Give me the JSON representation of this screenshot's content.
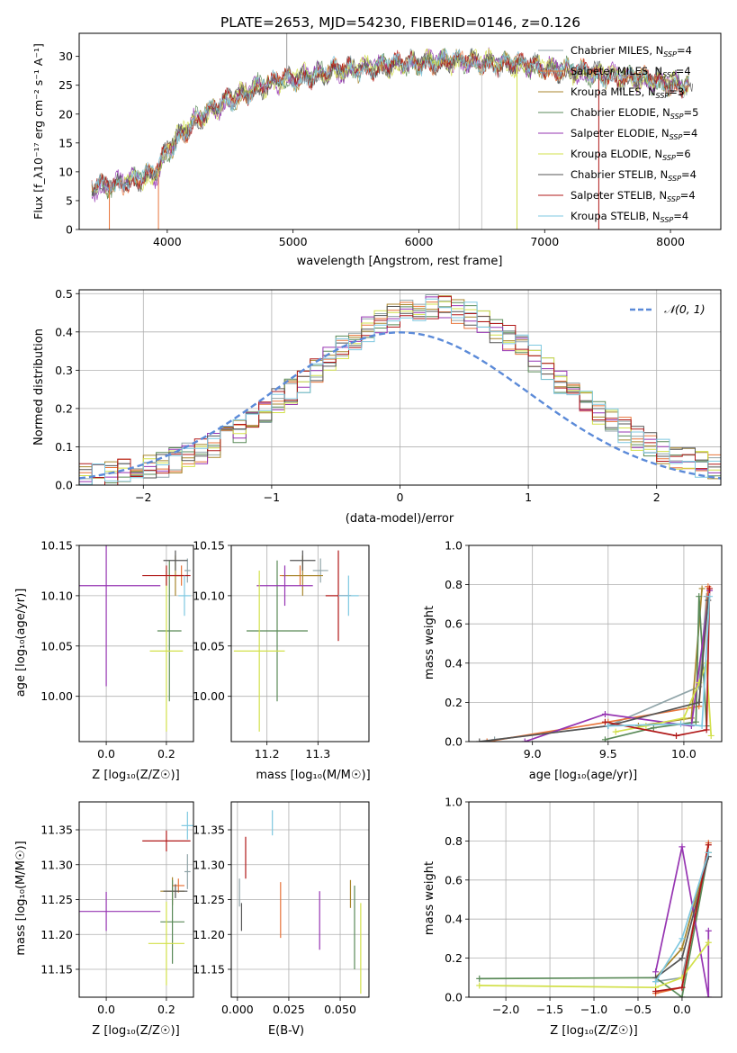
{
  "figure": {
    "title": "PLATE=2653, MJD=54230, FIBERID=0146, z=0.126"
  },
  "colors": {
    "series": [
      "#90a4a8",
      "#e8743a",
      "#a8862c",
      "#5a8a58",
      "#9634b2",
      "#d2e04a",
      "#555555",
      "#b01818",
      "#7ec8e0"
    ],
    "normal_curve": "#5b8ad8",
    "grid": "#b0b0b0"
  },
  "chart_data": [
    {
      "id": "spectrum",
      "type": "line",
      "xlabel": "wavelength [Angstrom, rest frame]",
      "ylabel": "Flux [f_λ10⁻¹⁷ erg cm⁻² s⁻¹ A⁻¹]",
      "xlim": [
        3300,
        8400
      ],
      "ylim": [
        0,
        34
      ],
      "xticks": [
        4000,
        5000,
        6000,
        7000,
        8000
      ],
      "yticks": [
        0,
        5,
        10,
        15,
        20,
        25,
        30
      ],
      "grid": false,
      "legend_position": "top-right",
      "continuum_x": [
        3400,
        3550,
        3700,
        3800,
        3900,
        4000,
        4100,
        4200,
        4300,
        4500,
        4700,
        4900,
        5100,
        5300,
        5500,
        5700,
        5900,
        6100,
        6300,
        6500,
        6700,
        6900,
        7100,
        7300,
        7500,
        7700,
        7900,
        8150
      ],
      "continuum_y": [
        7.2,
        7.8,
        8.5,
        9.0,
        9.5,
        13.5,
        16.5,
        18.5,
        20.0,
        22.5,
        24.5,
        25.8,
        26.6,
        27.3,
        27.9,
        28.3,
        28.7,
        29.1,
        29.2,
        29.0,
        28.7,
        28.3,
        27.8,
        27.2,
        26.8,
        26.2,
        25.6,
        25.0
      ],
      "series": [
        {
          "name": "Chabrier MILES, N_SSP=4",
          "label_main": "Chabrier MILES, N",
          "label_sub": "SSP",
          "label_tail": "=4"
        },
        {
          "name": "Salpeter MILES, N_SSP=4",
          "label_main": "Salpeter MILES, N",
          "label_sub": "SSP",
          "label_tail": "=4"
        },
        {
          "name": "Kroupa MILES, N_SSP=3",
          "label_main": "Kroupa MILES, N",
          "label_sub": "SSP",
          "label_tail": "=3"
        },
        {
          "name": "Chabrier ELODIE, N_SSP=5",
          "label_main": "Chabrier ELODIE, N",
          "label_sub": "SSP",
          "label_tail": "=5"
        },
        {
          "name": "Salpeter ELODIE, N_SSP=4",
          "label_main": "Salpeter ELODIE, N",
          "label_sub": "SSP",
          "label_tail": "=4"
        },
        {
          "name": "Kroupa ELODIE, N_SSP=6",
          "label_main": "Kroupa ELODIE, N",
          "label_sub": "SSP",
          "label_tail": "=6"
        },
        {
          "name": "Chabrier STELIB, N_SSP=4",
          "label_main": "Chabrier STELIB, N",
          "label_sub": "SSP",
          "label_tail": "=4"
        },
        {
          "name": "Salpeter STELIB, N_SSP=4",
          "label_main": "Salpeter STELIB, N",
          "label_sub": "SSP",
          "label_tail": "=4"
        },
        {
          "name": "Kroupa STELIB, N_SSP=4",
          "label_main": "Kroupa STELIB, N",
          "label_sub": "SSP",
          "label_tail": "=4"
        }
      ],
      "drop_lines_x": [
        3540,
        3930,
        6320,
        6500,
        6780,
        7430
      ],
      "spike_x": [
        4950
      ]
    },
    {
      "id": "residuals",
      "type": "bar",
      "xlabel": "(data-model)/error",
      "ylabel": "Normed distribution",
      "xlim": [
        -2.5,
        2.5
      ],
      "ylim": [
        0,
        0.51
      ],
      "xticks": [
        -2,
        -1,
        0,
        1,
        2
      ],
      "yticks": [
        0.0,
        0.1,
        0.2,
        0.3,
        0.4,
        0.5
      ],
      "grid": true,
      "legend_position": "top-right",
      "legend_label": "𝒩(0, 1)",
      "bin_width": 0.1,
      "base_profile": [
        0.03,
        0.03,
        0.035,
        0.04,
        0.045,
        0.05,
        0.055,
        0.06,
        0.07,
        0.08,
        0.09,
        0.1,
        0.11,
        0.13,
        0.15,
        0.17,
        0.19,
        0.21,
        0.23,
        0.25,
        0.27,
        0.29,
        0.31,
        0.33,
        0.35,
        0.37,
        0.39,
        0.4,
        0.42,
        0.43,
        0.44,
        0.45,
        0.45,
        0.45,
        0.44,
        0.43,
        0.42,
        0.41,
        0.4,
        0.39,
        0.37,
        0.35,
        0.33,
        0.31,
        0.29,
        0.27,
        0.25,
        0.23,
        0.21,
        0.19,
        0.17,
        0.15,
        0.13,
        0.11,
        0.1,
        0.09,
        0.08,
        0.07,
        0.06,
        0.055,
        0.05,
        0.045,
        0.04,
        0.035,
        0.03,
        0.03,
        0.025,
        0.025,
        0.02,
        0.02,
        0.02,
        0.02,
        0.02,
        0.02,
        0.02,
        0.02,
        0.02,
        0.02,
        0.02,
        0.02,
        0.02,
        0.02,
        0.02,
        0.02,
        0.02,
        0.02,
        0.02,
        0.02,
        0.02,
        0.02,
        0.02,
        0.02,
        0.02,
        0.02,
        0.02,
        0.02,
        0.02,
        0.02,
        0.02,
        0.02
      ]
    },
    {
      "id": "age_vs_Z",
      "type": "scatter",
      "xlabel": "Z [log₁₀(Z/Z☉)]",
      "ylabel": "age  [log₁₀(age/yr)]",
      "xlim": [
        -0.09,
        0.29
      ],
      "ylim": [
        9.955,
        10.15
      ],
      "xticks": [
        0.0,
        0.2
      ],
      "yticks": [
        10.0,
        10.05,
        10.1,
        10.15
      ],
      "grid": true,
      "points": [
        {
          "x": 0.27,
          "y": 10.125,
          "xe": 0.01,
          "ye": 0.012
        },
        {
          "x": 0.25,
          "y": 10.12,
          "xe": 0.02,
          "ye": 0.01
        },
        {
          "x": 0.23,
          "y": 10.12,
          "xe": 0.02,
          "ye": 0.02
        },
        {
          "x": 0.21,
          "y": 10.065,
          "xe": 0.04,
          "ye": 0.07
        },
        {
          "x": 0.0,
          "y": 10.11,
          "xe": 0.18,
          "ye": 0.1
        },
        {
          "x": 0.2,
          "y": 10.045,
          "xe": 0.055,
          "ye": 0.08
        },
        {
          "x": 0.23,
          "y": 10.135,
          "xe": 0.04,
          "ye": 0.01
        },
        {
          "x": 0.2,
          "y": 10.12,
          "xe": 0.08,
          "ye": 0.01
        },
        {
          "x": 0.26,
          "y": 10.1,
          "xe": 0.02,
          "ye": 0.02
        }
      ]
    },
    {
      "id": "age_vs_mass",
      "type": "scatter",
      "xlabel": "mass [log₁₀(M/M☉)]",
      "ylabel": "",
      "xlim": [
        11.13,
        11.4
      ],
      "ylim": [
        9.955,
        10.15
      ],
      "xticks": [
        11.2,
        11.3
      ],
      "yticks": [
        10.0,
        10.05,
        10.1,
        10.15
      ],
      "grid": true,
      "points": [
        {
          "x": 11.305,
          "y": 10.125,
          "xe": 0.015,
          "ye": 0.012
        },
        {
          "x": 11.265,
          "y": 10.12,
          "xe": 0.04,
          "ye": 0.01
        },
        {
          "x": 11.27,
          "y": 10.12,
          "xe": 0.04,
          "ye": 0.02
        },
        {
          "x": 11.22,
          "y": 10.065,
          "xe": 0.06,
          "ye": 0.07
        },
        {
          "x": 11.235,
          "y": 10.11,
          "xe": 0.055,
          "ye": 0.02
        },
        {
          "x": 11.185,
          "y": 10.045,
          "xe": 0.05,
          "ye": 0.08
        },
        {
          "x": 11.27,
          "y": 10.135,
          "xe": 0.025,
          "ye": 0.01
        },
        {
          "x": 11.34,
          "y": 10.1,
          "xe": 0.025,
          "ye": 0.045
        },
        {
          "x": 11.36,
          "y": 10.1,
          "xe": 0.02,
          "ye": 0.02
        }
      ]
    },
    {
      "id": "weight_vs_age",
      "type": "line",
      "xlabel": "age  [log₁₀(age/yr)]",
      "ylabel": "mass weight",
      "xlim": [
        8.58,
        10.25
      ],
      "ylim": [
        0,
        1.0
      ],
      "xticks": [
        9.0,
        9.5,
        10.0
      ],
      "yticks": [
        0.0,
        0.2,
        0.4,
        0.6,
        0.8,
        1.0
      ],
      "grid": true,
      "series": [
        {
          "x": [
            8.75,
            9.5,
            10.1,
            10.15
          ],
          "y": [
            0.01,
            0.08,
            0.28,
            0.74
          ]
        },
        {
          "x": [
            8.7,
            9.5,
            10.1,
            10.16
          ],
          "y": [
            0.0,
            0.1,
            0.18,
            0.79
          ]
        },
        {
          "x": [
            9.7,
            10.05,
            10.12
          ],
          "y": [
            0.08,
            0.12,
            0.78
          ]
        },
        {
          "x": [
            9.48,
            9.8,
            10.08,
            10.1,
            10.15
          ],
          "y": [
            0.01,
            0.07,
            0.1,
            0.74,
            0.08
          ]
        },
        {
          "x": [
            8.95,
            9.48,
            10.05,
            10.17
          ],
          "y": [
            0.0,
            0.14,
            0.08,
            0.77
          ]
        },
        {
          "x": [
            9.55,
            9.75,
            10.0,
            10.1,
            10.15,
            10.18
          ],
          "y": [
            0.05,
            0.08,
            0.12,
            0.3,
            0.4,
            0.03
          ]
        },
        {
          "x": [
            8.65,
            9.5,
            10.1,
            10.16
          ],
          "y": [
            0.0,
            0.08,
            0.2,
            0.72
          ]
        },
        {
          "x": [
            9.48,
            9.95,
            10.15,
            10.17
          ],
          "y": [
            0.1,
            0.03,
            0.06,
            0.78
          ]
        },
        {
          "x": [
            9.5,
            9.98,
            10.12,
            10.17
          ],
          "y": [
            0.08,
            0.09,
            0.08,
            0.74
          ]
        }
      ]
    },
    {
      "id": "mass_vs_Z",
      "type": "scatter",
      "xlabel": "Z [log₁₀(Z/Z☉)]",
      "ylabel": "mass [log₁₀(M/M☉)]",
      "xlim": [
        -0.09,
        0.29
      ],
      "ylim": [
        11.11,
        11.39
      ],
      "xticks": [
        0.0,
        0.2
      ],
      "yticks": [
        11.15,
        11.2,
        11.25,
        11.3,
        11.35
      ],
      "grid": true,
      "points": [
        {
          "x": 0.27,
          "y": 11.29,
          "xe": 0.01,
          "ye": 0.025
        },
        {
          "x": 0.24,
          "y": 11.27,
          "xe": 0.02,
          "ye": 0.01
        },
        {
          "x": 0.22,
          "y": 11.262,
          "xe": 0.04,
          "ye": 0.02
        },
        {
          "x": 0.22,
          "y": 11.218,
          "xe": 0.04,
          "ye": 0.06
        },
        {
          "x": 0.0,
          "y": 11.233,
          "xe": 0.18,
          "ye": 0.028
        },
        {
          "x": 0.2,
          "y": 11.187,
          "xe": 0.06,
          "ye": 0.06
        },
        {
          "x": 0.23,
          "y": 11.262,
          "xe": 0.04,
          "ye": 0.01
        },
        {
          "x": 0.2,
          "y": 11.334,
          "xe": 0.08,
          "ye": 0.015
        },
        {
          "x": 0.27,
          "y": 11.356,
          "xe": 0.02,
          "ye": 0.02
        }
      ]
    },
    {
      "id": "mass_vs_EBV",
      "type": "scatter",
      "xlabel": "E(B-V)",
      "ylabel": "",
      "xlim": [
        -0.003,
        0.064
      ],
      "ylim": [
        11.11,
        11.39
      ],
      "xticks": [
        0.0,
        0.025,
        0.05
      ],
      "xtick_labels": [
        "0.000",
        "0.025",
        "0.050"
      ],
      "yticks": [
        11.15,
        11.2,
        11.25,
        11.3,
        11.35
      ],
      "grid": true,
      "points": [
        {
          "x": 0.001,
          "y": 11.26,
          "xe": 0.0,
          "ye": 0.02
        },
        {
          "x": 0.021,
          "y": 11.235,
          "xe": 0.0,
          "ye": 0.04
        },
        {
          "x": 0.055,
          "y": 11.258,
          "xe": 0.0,
          "ye": 0.02
        },
        {
          "x": 0.057,
          "y": 11.21,
          "xe": 0.0,
          "ye": 0.06
        },
        {
          "x": 0.04,
          "y": 11.22,
          "xe": 0.0,
          "ye": 0.042
        },
        {
          "x": 0.06,
          "y": 11.18,
          "xe": 0.0,
          "ye": 0.065
        },
        {
          "x": 0.002,
          "y": 11.225,
          "xe": 0.0,
          "ye": 0.02
        },
        {
          "x": 0.004,
          "y": 11.31,
          "xe": 0.0,
          "ye": 0.03
        },
        {
          "x": 0.017,
          "y": 11.36,
          "xe": 0.0,
          "ye": 0.018
        }
      ]
    },
    {
      "id": "weight_vs_Z",
      "type": "line",
      "xlabel": "Z [log₁₀(Z/Z☉)]",
      "ylabel": "mass weight",
      "xlim": [
        -2.42,
        0.45
      ],
      "ylim": [
        0,
        1.0
      ],
      "xticks": [
        -2.0,
        -1.5,
        -1.0,
        -0.5,
        0.0
      ],
      "yticks": [
        0.0,
        0.2,
        0.4,
        0.6,
        0.8,
        1.0
      ],
      "grid": true,
      "series": [
        {
          "x": [
            -0.3,
            0.0,
            0.3
          ],
          "y": [
            0.08,
            0.1,
            0.74
          ]
        },
        {
          "x": [
            -0.3,
            0.0,
            0.3
          ],
          "y": [
            0.02,
            0.05,
            0.79
          ]
        },
        {
          "x": [
            -0.3,
            0.0,
            0.3
          ],
          "y": [
            0.1,
            0.25,
            0.74
          ]
        },
        {
          "x": [
            -2.3,
            -0.3,
            0.0,
            0.3
          ],
          "y": [
            0.095,
            0.1,
            0.0,
            0.74
          ]
        },
        {
          "x": [
            -0.3,
            0.0,
            0.3,
            0.3
          ],
          "y": [
            0.13,
            0.77,
            0.0,
            0.34
          ]
        },
        {
          "x": [
            -2.3,
            -0.3,
            0.0,
            0.3
          ],
          "y": [
            0.06,
            0.05,
            0.1,
            0.28
          ]
        },
        {
          "x": [
            -0.3,
            0.0,
            0.3
          ],
          "y": [
            0.1,
            0.2,
            0.72
          ]
        },
        {
          "x": [
            -0.3,
            0.0,
            0.3
          ],
          "y": [
            0.03,
            0.05,
            0.78
          ]
        },
        {
          "x": [
            -0.3,
            0.0,
            0.3
          ],
          "y": [
            0.08,
            0.3,
            0.74
          ]
        }
      ]
    }
  ]
}
